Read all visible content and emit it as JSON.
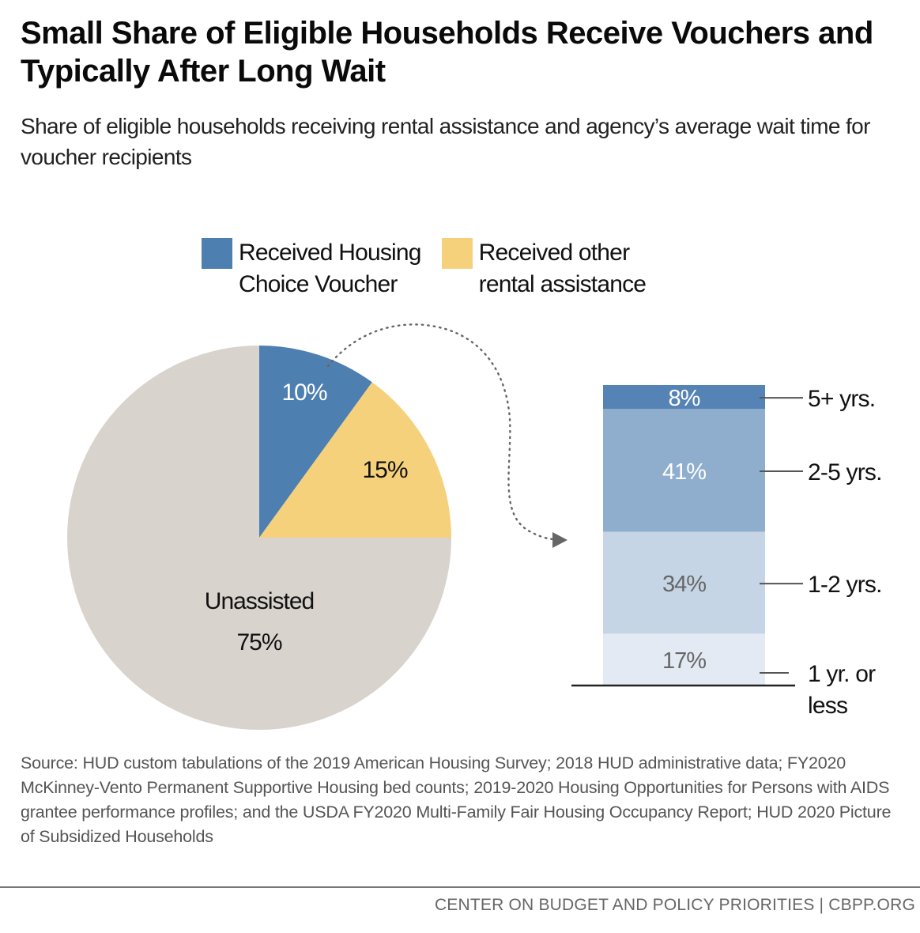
{
  "header": {
    "title": "Small Share of Eligible Households Receive Vouchers and Typically After Long Wait",
    "subtitle": "Share of eligible households receiving rental assistance and agency’s average wait time for voucher recipients"
  },
  "legend": [
    {
      "label": "Received Housing\nChoice Voucher",
      "color": "#4e7fb1"
    },
    {
      "label": "Received other\nrental assistance",
      "color": "#f6d17c"
    }
  ],
  "chart_data": [
    {
      "type": "pie",
      "title": "Share of eligible households receiving rental assistance",
      "slices": [
        {
          "name": "Received Housing Choice Voucher",
          "label": "10%",
          "value": 10,
          "color": "#4e7fb1",
          "label_color": "#ffffff"
        },
        {
          "name": "Received other rental assistance",
          "label": "15%",
          "value": 15,
          "color": "#f6d17c",
          "label_color": "#111111"
        },
        {
          "name": "Unassisted",
          "label": "Unassisted\n75%",
          "value": 75,
          "color": "#d8d3cd",
          "label_color": "#111111"
        }
      ],
      "start_angle_deg": 0,
      "direction": "clockwise"
    },
    {
      "type": "bar",
      "stacked": true,
      "title": "Agency’s average wait time for voucher recipients",
      "categories": [
        "5+ yrs.",
        "2-5 yrs.",
        "1-2 yrs.",
        "1 yr. or less"
      ],
      "values": [
        8,
        41,
        34,
        17
      ],
      "value_labels": [
        "8%",
        "41%",
        "34%",
        "17%"
      ],
      "colors": [
        "#5583b6",
        "#8fadcd",
        "#c5d5e6",
        "#e3eaf3"
      ],
      "label_colors": [
        "#ffffff",
        "#ffffff",
        "#666666",
        "#666666"
      ],
      "ylim": [
        0,
        100
      ]
    }
  ],
  "source": "Source: HUD custom tabulations of the 2019 American Housing Survey; 2018 HUD administrative data; FY2020 McKinney-Vento Permanent Supportive Housing bed counts; 2019-2020 Housing Opportunities for Persons with AIDS grantee performance profiles; and the USDA FY2020 Multi-Family Fair Housing Occupancy Report; HUD 2020 Picture of Subsidized Households",
  "footer": "CENTER ON BUDGET AND POLICY PRIORITIES | CBPP.ORG"
}
